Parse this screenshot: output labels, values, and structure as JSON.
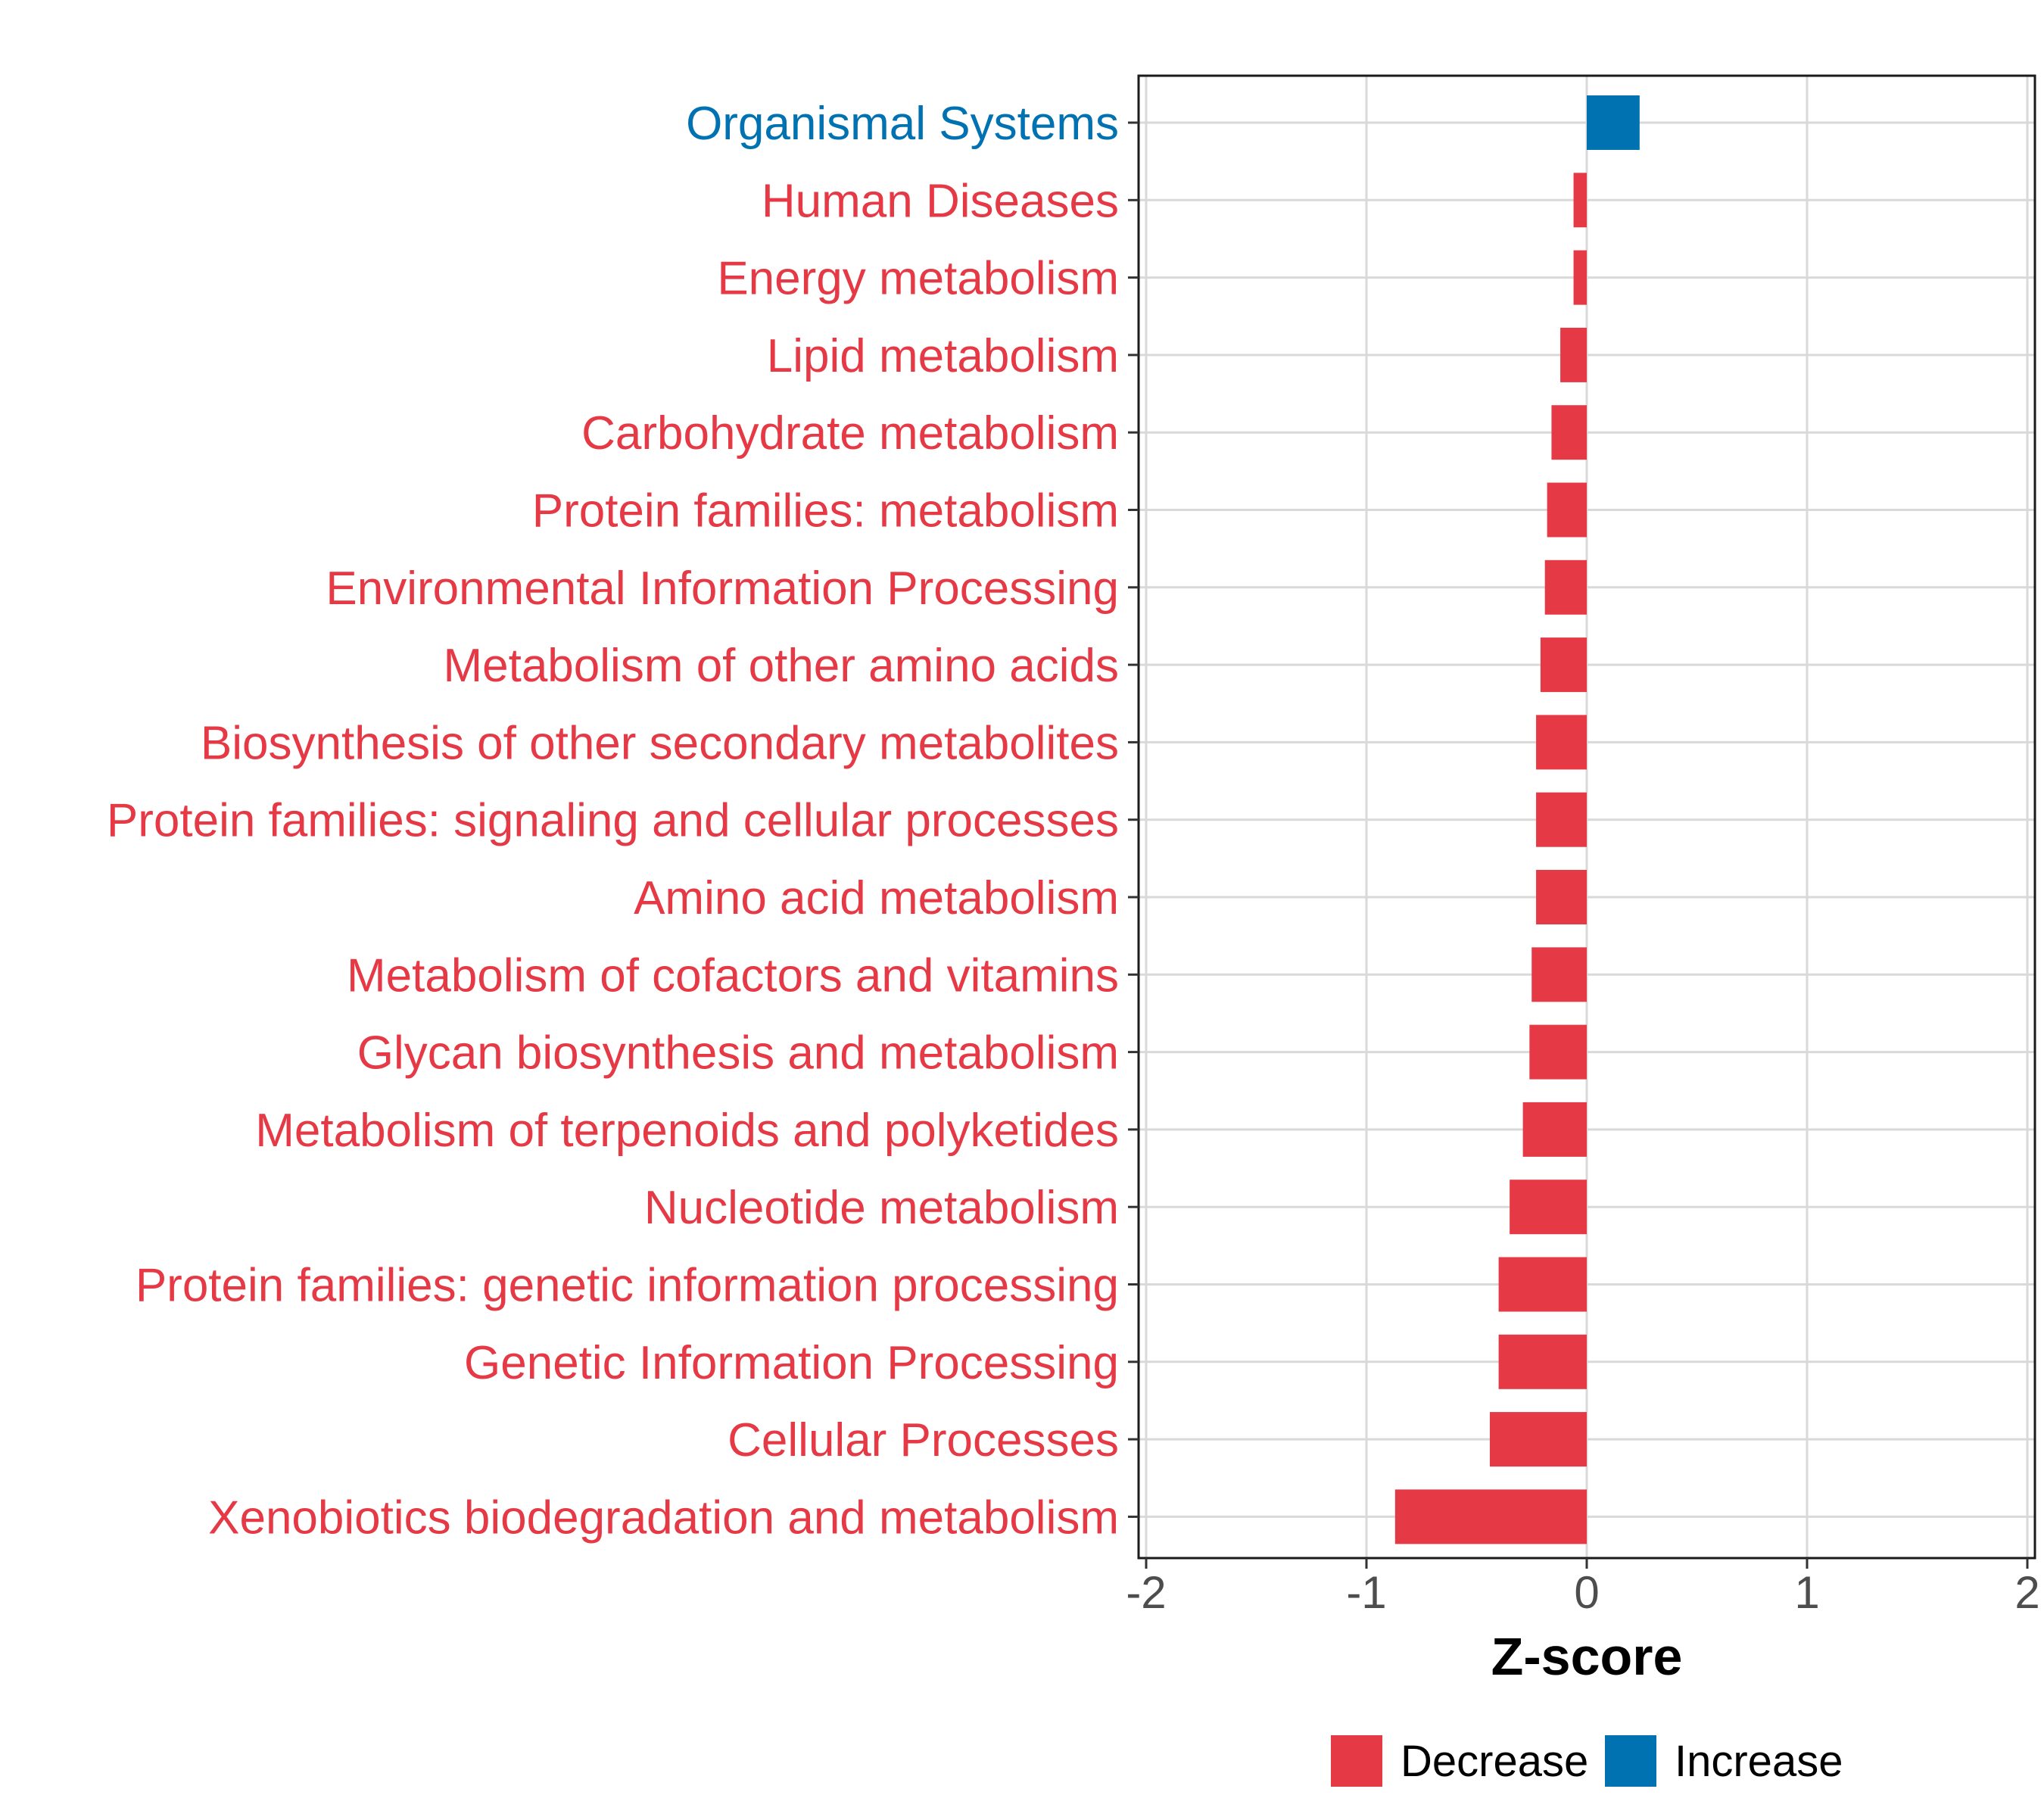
{
  "chart_data": {
    "type": "bar",
    "orientation": "horizontal",
    "title": "",
    "xlabel": "Z-score",
    "ylabel": "",
    "xlim": [
      -2,
      2
    ],
    "xticks": [
      -2,
      -1,
      0,
      1,
      2
    ],
    "xtick_labels": [
      "-2",
      "-1",
      "0",
      "1",
      "2"
    ],
    "grid": true,
    "legend_position": "bottom",
    "categories": [
      "Organismal Systems",
      "Human Diseases",
      "Energy metabolism",
      "Lipid metabolism",
      "Carbohydrate metabolism",
      "Protein families: metabolism",
      "Environmental Information Processing",
      "Metabolism of other amino acids",
      "Biosynthesis of other secondary metabolites",
      "Protein families: signaling and cellular processes",
      "Amino acid metabolism",
      "Metabolism of cofactors and vitamins",
      "Glycan biosynthesis and metabolism",
      "Metabolism of terpenoids and polyketides",
      "Nucleotide metabolism",
      "Protein families: genetic information processing",
      "Genetic Information Processing",
      "Cellular Processes",
      "Xenobiotics biodegradation and metabolism"
    ],
    "values": [
      0.24,
      -0.06,
      -0.06,
      -0.12,
      -0.16,
      -0.18,
      -0.19,
      -0.21,
      -0.23,
      -0.23,
      -0.23,
      -0.25,
      -0.26,
      -0.29,
      -0.35,
      -0.4,
      -0.4,
      -0.44,
      -0.87
    ],
    "groups": [
      "Increase",
      "Decrease",
      "Decrease",
      "Decrease",
      "Decrease",
      "Decrease",
      "Decrease",
      "Decrease",
      "Decrease",
      "Decrease",
      "Decrease",
      "Decrease",
      "Decrease",
      "Decrease",
      "Decrease",
      "Decrease",
      "Decrease",
      "Decrease",
      "Decrease"
    ],
    "legend": [
      {
        "name": "Decrease",
        "color": "#E63946"
      },
      {
        "name": "Increase",
        "color": "#0072B2"
      }
    ]
  }
}
